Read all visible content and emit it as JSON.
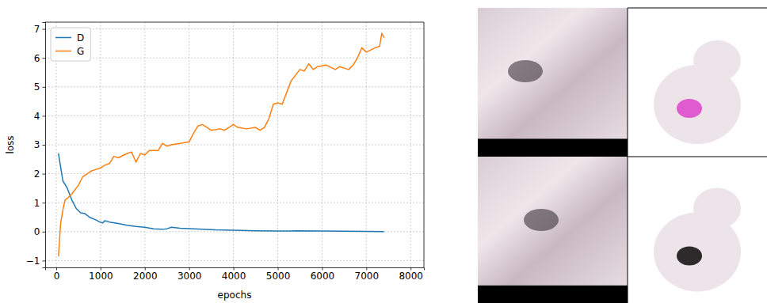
{
  "chart_data": {
    "type": "line",
    "xlabel": "epochs",
    "ylabel": "loss",
    "xlim": [
      -250,
      8300
    ],
    "ylim": [
      -1.235,
      7.235
    ],
    "xticks": [
      0,
      1000,
      2000,
      3000,
      4000,
      5000,
      6000,
      7000,
      8000
    ],
    "yticks": [
      {
        "value": -1,
        "label": "−1"
      },
      0,
      1,
      2,
      3,
      4,
      5,
      6,
      7
    ],
    "grid": true,
    "legend": "upper left",
    "series": [
      {
        "name": "D",
        "color": "#1f77b4",
        "x": [
          50,
          150,
          250,
          350,
          450,
          550,
          650,
          750,
          900,
          1000,
          1050,
          1100,
          1200,
          1400,
          1600,
          1800,
          2000,
          2200,
          2400,
          2500,
          2600,
          2800,
          3200,
          3600,
          4000,
          4500,
          5000,
          5300,
          5400,
          6000,
          7000,
          7400
        ],
        "values": [
          2.7,
          1.75,
          1.5,
          1.1,
          0.8,
          0.65,
          0.62,
          0.5,
          0.4,
          0.32,
          0.3,
          0.38,
          0.33,
          0.28,
          0.22,
          0.18,
          0.15,
          0.1,
          0.08,
          0.1,
          0.15,
          0.12,
          0.09,
          0.06,
          0.05,
          0.03,
          0.02,
          0.02,
          0.03,
          0.02,
          0.01,
          0.0
        ]
      },
      {
        "name": "G",
        "color": "#ff7f0e",
        "x": [
          50,
          100,
          150,
          200,
          250,
          350,
          450,
          500,
          600,
          700,
          800,
          900,
          1000,
          1100,
          1200,
          1300,
          1400,
          1600,
          1700,
          1800,
          1900,
          2000,
          2100,
          2300,
          2400,
          2500,
          2600,
          2800,
          3000,
          3100,
          3200,
          3300,
          3500,
          3700,
          3800,
          4000,
          4100,
          4300,
          4500,
          4600,
          4700,
          4800,
          4900,
          5000,
          5100,
          5200,
          5300,
          5400,
          5500,
          5600,
          5700,
          5800,
          5900,
          6100,
          6300,
          6400,
          6600,
          6700,
          6800,
          6900,
          7000,
          7200,
          7300,
          7350,
          7400
        ],
        "values": [
          -0.85,
          0.3,
          0.75,
          1.1,
          1.15,
          1.3,
          1.5,
          1.6,
          1.9,
          2.0,
          2.1,
          2.15,
          2.2,
          2.3,
          2.35,
          2.6,
          2.55,
          2.7,
          2.75,
          2.4,
          2.7,
          2.65,
          2.8,
          2.8,
          3.05,
          2.95,
          3.0,
          3.05,
          3.1,
          3.4,
          3.65,
          3.7,
          3.5,
          3.55,
          3.5,
          3.7,
          3.6,
          3.55,
          3.6,
          3.5,
          3.6,
          3.9,
          4.4,
          4.45,
          4.4,
          4.8,
          5.2,
          5.4,
          5.6,
          5.55,
          5.8,
          5.6,
          5.7,
          5.75,
          5.6,
          5.7,
          5.6,
          5.75,
          6.0,
          6.35,
          6.2,
          6.35,
          6.4,
          6.85,
          6.7
        ]
      }
    ]
  }
}
